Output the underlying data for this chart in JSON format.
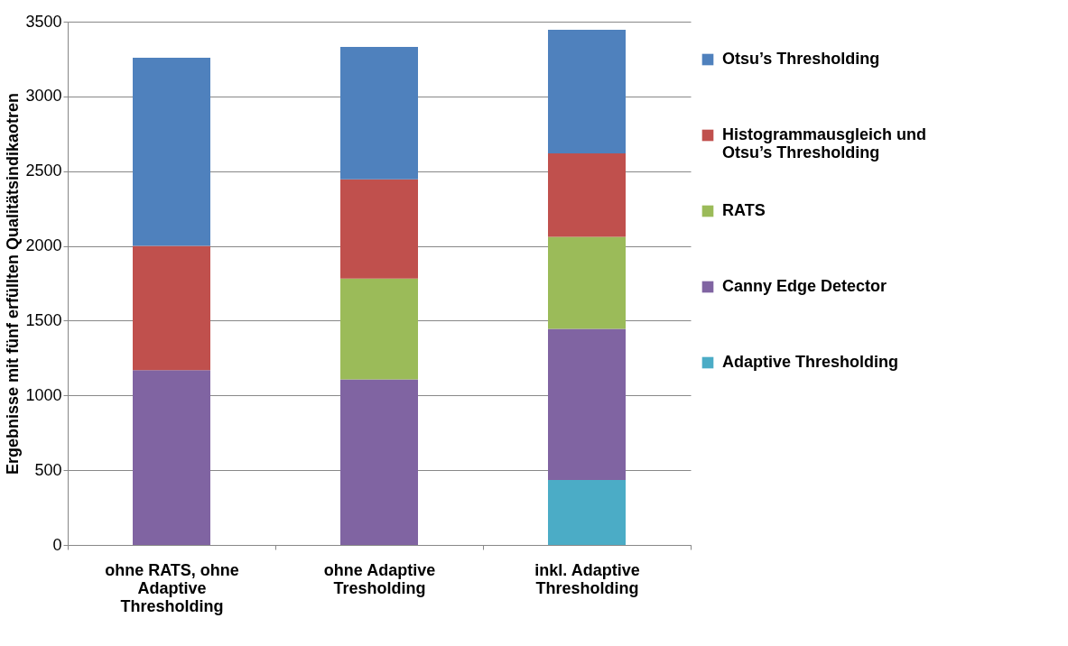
{
  "chart_data": {
    "type": "bar",
    "stacked": true,
    "ylabel": "Ergebnisse mit fünf erfüllten Qualitätsindikaotren",
    "categories": [
      "ohne RATS, ohne Adaptive Thresholding",
      "ohne Adaptive Tresholding",
      "inkl. Adaptive Thresholding"
    ],
    "series": [
      {
        "name": "Adaptive Thresholding",
        "color": "#4bacc6",
        "values": [
          null,
          null,
          435
        ]
      },
      {
        "name": "Canny Edge Detector",
        "color": "#8064a2",
        "values": [
          1169,
          1108,
          1011
        ]
      },
      {
        "name": "RATS",
        "color": "#9bbb59",
        "values": [
          null,
          673,
          615
        ]
      },
      {
        "name": "Histogrammausgleich und Otsu’s Thresholding",
        "color": "#c0504d",
        "values": [
          831,
          664,
          558
        ]
      },
      {
        "name": "Otsu’s Thresholding",
        "color": "#4f81bd",
        "values": [
          1259,
          886,
          826
        ]
      }
    ],
    "ylim": [
      0,
      3500
    ],
    "yticks": [
      0,
      500,
      1000,
      1500,
      2000,
      2500,
      3000,
      3500
    ],
    "grid": "y",
    "legend": "right"
  }
}
